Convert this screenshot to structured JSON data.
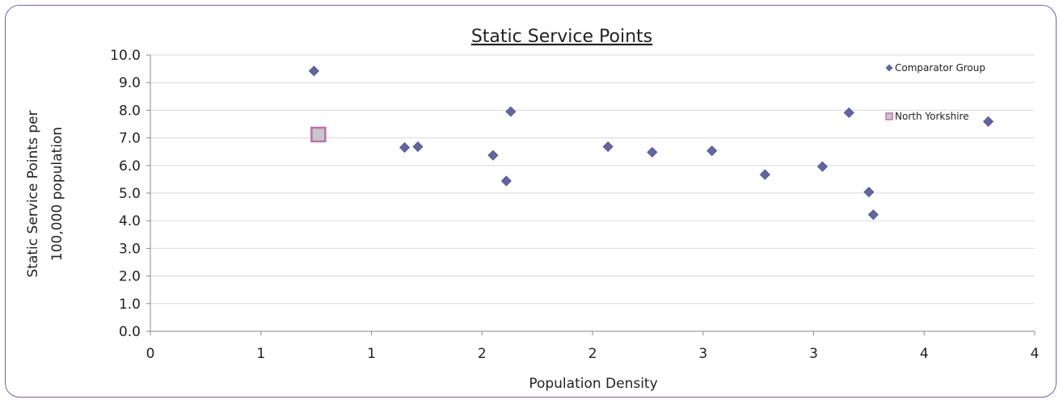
{
  "chart_data": {
    "type": "scatter",
    "title": "Static Service Points",
    "xlabel": "Population Density",
    "ylabel_lines": [
      "Static Service Points per",
      "100,000 population"
    ],
    "xlim": [
      0,
      4
    ],
    "ylim": [
      0,
      10
    ],
    "x_tick_values": [
      0,
      0.5,
      1,
      1.5,
      2,
      2.5,
      3,
      3.5,
      4
    ],
    "x_tick_labels": [
      "0",
      "1",
      "1",
      "2",
      "2",
      "3",
      "3",
      "4",
      "4"
    ],
    "y_tick_values": [
      0,
      1,
      2,
      3,
      4,
      5,
      6,
      7,
      8,
      9,
      10
    ],
    "y_tick_labels": [
      "0.0",
      "1.0",
      "2.0",
      "3.0",
      "4.0",
      "5.0",
      "6.0",
      "7.0",
      "8.0",
      "9.0",
      "10.0"
    ],
    "grid": true,
    "legend_position": "top-right",
    "series": [
      {
        "name": "Comparator Group",
        "marker": "diamond",
        "color": "#6464a0",
        "points": [
          {
            "x": 0.74,
            "y": 9.42
          },
          {
            "x": 1.15,
            "y": 6.65
          },
          {
            "x": 1.21,
            "y": 6.68
          },
          {
            "x": 1.55,
            "y": 6.37
          },
          {
            "x": 1.61,
            "y": 5.44
          },
          {
            "x": 1.63,
            "y": 7.95
          },
          {
            "x": 2.07,
            "y": 6.68
          },
          {
            "x": 2.27,
            "y": 6.48
          },
          {
            "x": 2.54,
            "y": 6.53
          },
          {
            "x": 2.78,
            "y": 5.67
          },
          {
            "x": 3.04,
            "y": 5.96
          },
          {
            "x": 3.16,
            "y": 7.91
          },
          {
            "x": 3.25,
            "y": 5.04
          },
          {
            "x": 3.27,
            "y": 4.22
          },
          {
            "x": 3.79,
            "y": 7.59
          }
        ]
      },
      {
        "name": "North Yorkshire",
        "marker": "square",
        "color": "#c8c8c8",
        "stroke": "#c070b0",
        "points": [
          {
            "x": 0.76,
            "y": 7.12
          }
        ]
      }
    ]
  }
}
